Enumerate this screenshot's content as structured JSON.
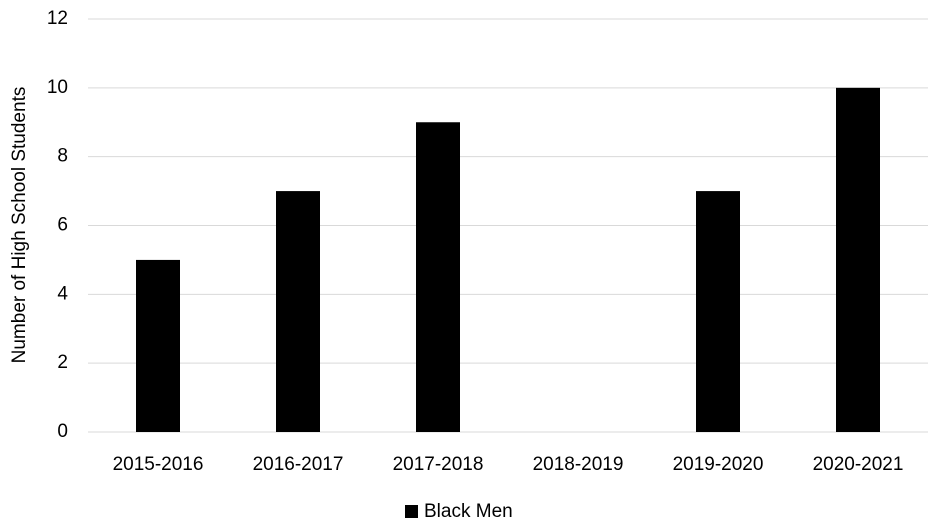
{
  "chart_data": {
    "type": "bar",
    "y_label": "Number of High School Students",
    "categories": [
      "2015-2016",
      "2016-2017",
      "2017-2018",
      "2018-2019",
      "2019-2020",
      "2020-2021"
    ],
    "series": [
      {
        "name": "Black Men",
        "color": "#000000",
        "values": [
          5,
          7,
          9,
          0,
          7,
          10
        ]
      }
    ],
    "ylim": [
      0,
      12
    ],
    "yticks": [
      0,
      2,
      4,
      6,
      8,
      10,
      12
    ],
    "grid": true,
    "legend": "bottom"
  }
}
